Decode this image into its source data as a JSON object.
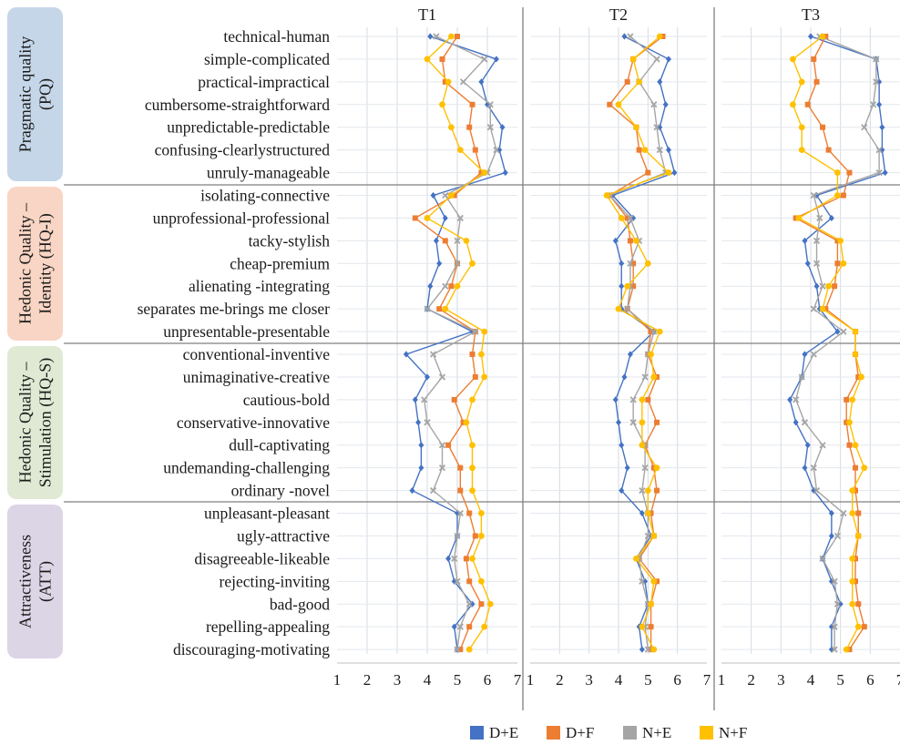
{
  "chart_data": {
    "type": "line",
    "panels": [
      "T1",
      "T2",
      "T3"
    ],
    "x_axis": {
      "range": [
        1,
        7
      ],
      "ticks": [
        1,
        2,
        3,
        4,
        5,
        6,
        7
      ]
    },
    "groups": [
      {
        "label_lines": [
          "Pragmatic quality",
          "(PQ)"
        ],
        "color": "#c5d6e8",
        "count": 7
      },
      {
        "label_lines": [
          "Hedonic Quality –",
          "Identity (HQ-I)"
        ],
        "color": "#f8d5c4",
        "count": 7
      },
      {
        "label_lines": [
          "Hedonic Quality –",
          "Stimulation (HQ-S)"
        ],
        "color": "#dfe9d4",
        "count": 7
      },
      {
        "label_lines": [
          "Attractiveness",
          "(ATT)"
        ],
        "color": "#dcd5e6",
        "count": 7
      }
    ],
    "items": [
      "technical-human",
      "simple-complicated",
      "practical-impractical",
      "cumbersome-straightforward",
      "unpredictable-predictable",
      "confusing-clearlystructured",
      "unruly-manageable",
      "isolating-connective",
      "unprofessional-professional",
      "tacky-stylish",
      "cheap-premium",
      "alienating -integrating",
      "separates me-brings me closer",
      "unpresentable-presentable",
      "conventional-inventive",
      "unimaginative-creative",
      "cautious-bold",
      "conservative-innovative",
      "dull-captivating",
      "undemanding-challenging",
      "ordinary -novel",
      "unpleasant-pleasant",
      "ugly-attractive",
      "disagreeable-likeable",
      "rejecting-inviting",
      "bad-good",
      "repelling-appealing",
      "discouraging-motivating"
    ],
    "series": [
      {
        "name": "D+E",
        "color": "#4472c4",
        "marker": "diamond",
        "T1": [
          4.1,
          6.3,
          5.8,
          6.0,
          6.5,
          6.4,
          6.6,
          4.2,
          4.6,
          4.3,
          4.4,
          4.1,
          4.0,
          5.5,
          3.3,
          4.0,
          3.6,
          3.7,
          3.8,
          3.8,
          3.5,
          5.0,
          5.0,
          4.7,
          4.9,
          5.5,
          4.9,
          5.0
        ],
        "T2": [
          4.2,
          5.7,
          5.4,
          5.6,
          5.4,
          5.7,
          5.9,
          3.8,
          4.5,
          3.9,
          4.1,
          4.1,
          4.1,
          5.2,
          4.4,
          4.2,
          3.9,
          4.0,
          4.1,
          4.3,
          4.1,
          4.8,
          5.1,
          4.6,
          4.9,
          5.0,
          4.7,
          4.8
        ],
        "T3": [
          4.0,
          6.2,
          6.3,
          6.3,
          6.4,
          6.4,
          6.5,
          4.2,
          4.7,
          3.8,
          3.9,
          4.2,
          4.3,
          4.9,
          3.8,
          3.7,
          3.3,
          3.5,
          3.9,
          3.8,
          4.1,
          4.7,
          4.7,
          4.4,
          4.7,
          5.0,
          4.7,
          4.7
        ]
      },
      {
        "name": "D+F",
        "color": "#ed7d31",
        "marker": "square",
        "T1": [
          5.0,
          4.5,
          4.6,
          5.5,
          5.4,
          5.6,
          5.8,
          4.9,
          3.6,
          4.6,
          5.0,
          4.8,
          4.4,
          5.6,
          5.5,
          5.6,
          4.9,
          5.2,
          4.7,
          5.1,
          5.1,
          5.4,
          5.6,
          5.3,
          5.4,
          5.8,
          5.4,
          5.1
        ],
        "T2": [
          5.5,
          4.5,
          4.3,
          3.7,
          4.6,
          4.7,
          5.0,
          3.7,
          4.3,
          4.4,
          4.5,
          4.5,
          4.3,
          5.1,
          5.0,
          5.3,
          5.0,
          5.3,
          4.9,
          5.2,
          5.3,
          5.1,
          5.2,
          4.7,
          5.3,
          5.1,
          5.1,
          5.1
        ],
        "T3": [
          4.5,
          4.1,
          4.2,
          3.9,
          4.4,
          4.6,
          5.3,
          5.1,
          3.5,
          4.9,
          4.9,
          4.8,
          4.5,
          5.5,
          5.5,
          5.6,
          5.2,
          5.2,
          5.3,
          5.5,
          5.5,
          5.6,
          5.6,
          5.5,
          5.5,
          5.6,
          5.8,
          5.3
        ]
      },
      {
        "name": "N+E",
        "color": "#a5a5a5",
        "marker": "x",
        "T1": [
          4.3,
          5.9,
          5.2,
          6.1,
          6.1,
          6.3,
          6.0,
          4.6,
          5.1,
          5.0,
          5.0,
          4.6,
          4.0,
          5.6,
          4.2,
          4.5,
          3.9,
          4.0,
          4.5,
          4.5,
          4.2,
          5.1,
          5.0,
          4.9,
          5.0,
          5.4,
          5.1,
          5.0
        ],
        "T2": [
          4.4,
          5.3,
          4.7,
          5.2,
          5.3,
          5.4,
          5.6,
          3.7,
          4.4,
          4.7,
          4.4,
          4.4,
          4.3,
          5.2,
          5.0,
          4.9,
          4.5,
          4.5,
          4.9,
          4.9,
          4.8,
          5.0,
          5.0,
          4.7,
          4.8,
          5.0,
          4.9,
          5.0
        ],
        "T3": [
          4.3,
          6.2,
          6.2,
          6.1,
          5.8,
          6.3,
          6.3,
          4.1,
          4.3,
          4.2,
          4.2,
          4.4,
          4.1,
          5.1,
          4.1,
          3.7,
          3.5,
          3.8,
          4.4,
          4.1,
          4.2,
          5.1,
          4.9,
          4.4,
          4.8,
          4.9,
          4.8,
          4.8
        ]
      },
      {
        "name": "N+F",
        "color": "#ffc000",
        "marker": "circle",
        "T1": [
          4.8,
          4.0,
          4.7,
          4.5,
          4.8,
          5.1,
          5.9,
          4.8,
          4.0,
          5.3,
          5.5,
          5.0,
          4.6,
          5.9,
          5.8,
          5.9,
          5.5,
          5.3,
          5.5,
          5.5,
          5.5,
          5.8,
          5.8,
          5.5,
          5.8,
          6.1,
          5.9,
          5.4
        ],
        "T2": [
          5.4,
          4.5,
          4.7,
          4.0,
          4.6,
          4.9,
          5.7,
          3.6,
          4.1,
          4.6,
          5.0,
          4.3,
          4.0,
          5.4,
          5.1,
          5.2,
          4.8,
          4.8,
          4.8,
          5.3,
          5.0,
          5.0,
          5.2,
          4.6,
          5.2,
          5.1,
          4.8,
          5.2
        ],
        "T3": [
          4.4,
          3.4,
          3.7,
          3.4,
          3.7,
          3.7,
          4.9,
          4.9,
          3.6,
          5.0,
          5.1,
          4.6,
          4.4,
          5.5,
          5.5,
          5.7,
          5.4,
          5.3,
          5.5,
          5.8,
          5.4,
          5.4,
          5.6,
          5.4,
          5.4,
          5.4,
          5.6,
          5.2
        ]
      }
    ],
    "legend": {
      "position": "bottom"
    }
  }
}
